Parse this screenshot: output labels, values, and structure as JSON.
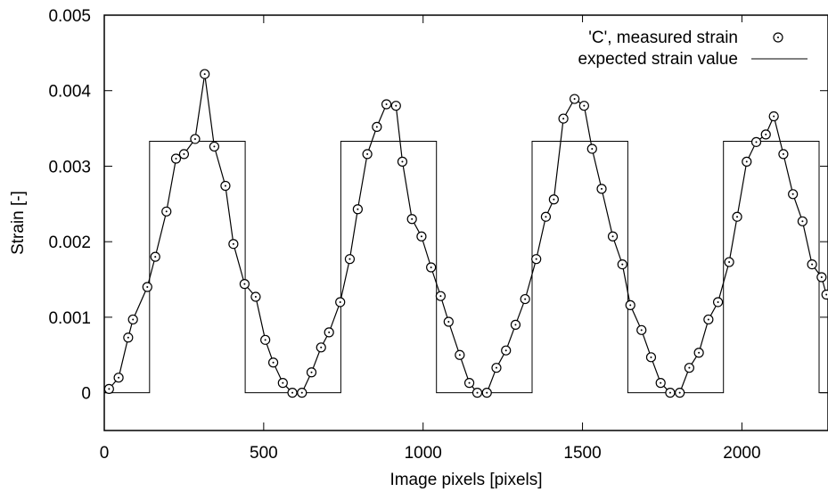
{
  "chart_data": {
    "type": "line",
    "title": "",
    "xlabel": "Image pixels [pixels]",
    "ylabel": "Strain [-]",
    "xlim": [
      0,
      2270
    ],
    "ylim": [
      -0.0005,
      0.005
    ],
    "xticks": [
      0,
      500,
      1000,
      1500,
      2000
    ],
    "xtick_labels": [
      "0",
      "500",
      "1000",
      "1500",
      "2000"
    ],
    "yticks": [
      0,
      0.001,
      0.002,
      0.003,
      0.004,
      0.005
    ],
    "ytick_labels": [
      "0",
      "0.001",
      "0.002",
      "0.003",
      "0.004",
      "0.005"
    ],
    "grid": false,
    "legend_position": "top-right",
    "series": [
      {
        "name": "'C', measured strain",
        "style": "line-with-circle-markers",
        "color": "#000000",
        "x": [
          15,
          45,
          75,
          90,
          135,
          160,
          195,
          225,
          250,
          285,
          315,
          345,
          380,
          405,
          440,
          475,
          505,
          530,
          560,
          590,
          620,
          650,
          680,
          705,
          740,
          770,
          795,
          825,
          855,
          885,
          915,
          935,
          965,
          995,
          1025,
          1055,
          1080,
          1115,
          1145,
          1170,
          1200,
          1230,
          1260,
          1290,
          1320,
          1355,
          1385,
          1410,
          1440,
          1475,
          1505,
          1530,
          1560,
          1595,
          1625,
          1650,
          1685,
          1715,
          1745,
          1775,
          1805,
          1835,
          1865,
          1895,
          1925,
          1960,
          1985,
          2015,
          2045,
          2075,
          2100,
          2130,
          2160,
          2190,
          2220,
          2250,
          2265
        ],
        "y": [
          5e-05,
          0.0002,
          0.00073,
          0.00097,
          0.0014,
          0.0018,
          0.0024,
          0.0031,
          0.00316,
          0.00336,
          0.00422,
          0.00326,
          0.00274,
          0.00197,
          0.00144,
          0.00127,
          0.0007,
          0.0004,
          0.00013,
          0.0,
          0.0,
          0.00027,
          0.0006,
          0.0008,
          0.0012,
          0.00177,
          0.00243,
          0.00316,
          0.00352,
          0.00382,
          0.0038,
          0.00306,
          0.0023,
          0.00207,
          0.00166,
          0.00128,
          0.00094,
          0.0005,
          0.00013,
          0.0,
          0.0,
          0.00033,
          0.00056,
          0.0009,
          0.00124,
          0.00177,
          0.00233,
          0.00256,
          0.00363,
          0.00389,
          0.0038,
          0.00323,
          0.0027,
          0.00207,
          0.0017,
          0.00116,
          0.00083,
          0.00047,
          0.00013,
          0.0,
          0.0,
          0.00033,
          0.00053,
          0.00097,
          0.0012,
          0.00173,
          0.00233,
          0.00306,
          0.00332,
          0.00342,
          0.00366,
          0.00316,
          0.00263,
          0.00227,
          0.0017,
          0.00153,
          0.0013
        ]
      },
      {
        "name": "expected strain value",
        "style": "step-line",
        "color": "#000000",
        "x": [
          0,
          142,
          142,
          442,
          442,
          742,
          742,
          1042,
          1042,
          1342,
          1342,
          1642,
          1642,
          1942,
          1942,
          2242,
          2242,
          2270
        ],
        "y": [
          0,
          0,
          0.00333,
          0.00333,
          0,
          0,
          0.00333,
          0.00333,
          0,
          0,
          0.00333,
          0.00333,
          0,
          0,
          0.00333,
          0.00333,
          0,
          0
        ]
      }
    ]
  }
}
